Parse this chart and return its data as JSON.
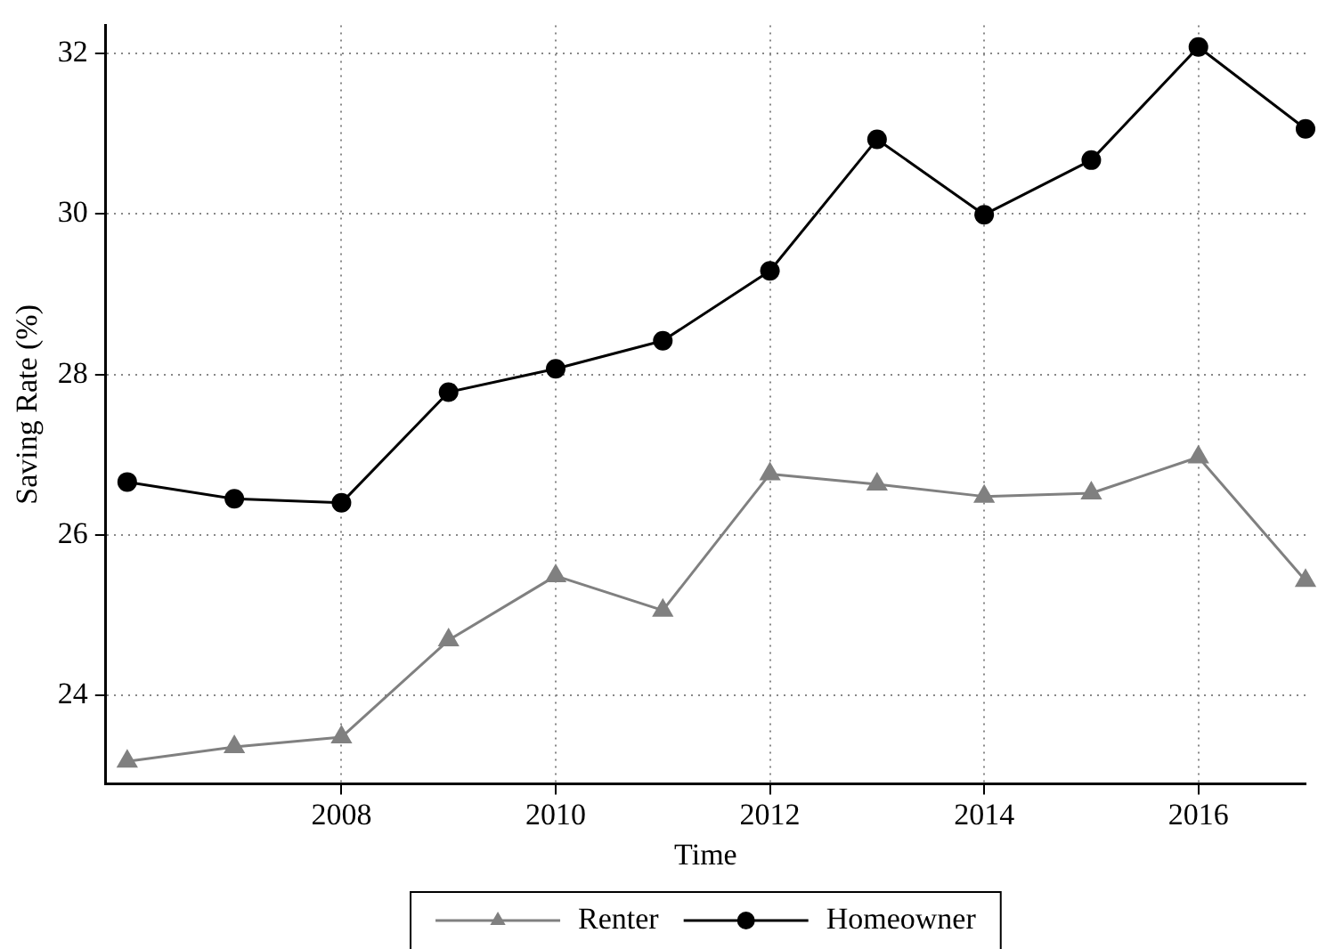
{
  "chart_data": {
    "type": "line",
    "xlabel": "Time",
    "ylabel": "Saving Rate (%)",
    "x": [
      2006,
      2007,
      2008,
      2009,
      2010,
      2011,
      2012,
      2013,
      2014,
      2015,
      2016,
      2017
    ],
    "series": [
      {
        "name": "Renter",
        "color": "#808080",
        "marker": "triangle",
        "values": [
          23.18,
          23.36,
          23.48,
          24.69,
          25.49,
          25.06,
          26.76,
          26.63,
          26.48,
          26.52,
          26.97,
          25.43
        ]
      },
      {
        "name": "Homeowner",
        "color": "#000000",
        "marker": "circle",
        "values": [
          26.66,
          26.45,
          26.4,
          27.78,
          28.07,
          28.42,
          29.29,
          30.93,
          29.99,
          30.67,
          32.08,
          31.06
        ]
      }
    ],
    "xlim": [
      2005.8,
      2017
    ],
    "xticks": [
      2008,
      2010,
      2012,
      2014,
      2016
    ],
    "ylim": [
      22.9,
      32.35
    ],
    "yticks": [
      24,
      26,
      28,
      30,
      32
    ],
    "grid": true,
    "legend": "bottom",
    "line_style": "solid"
  }
}
